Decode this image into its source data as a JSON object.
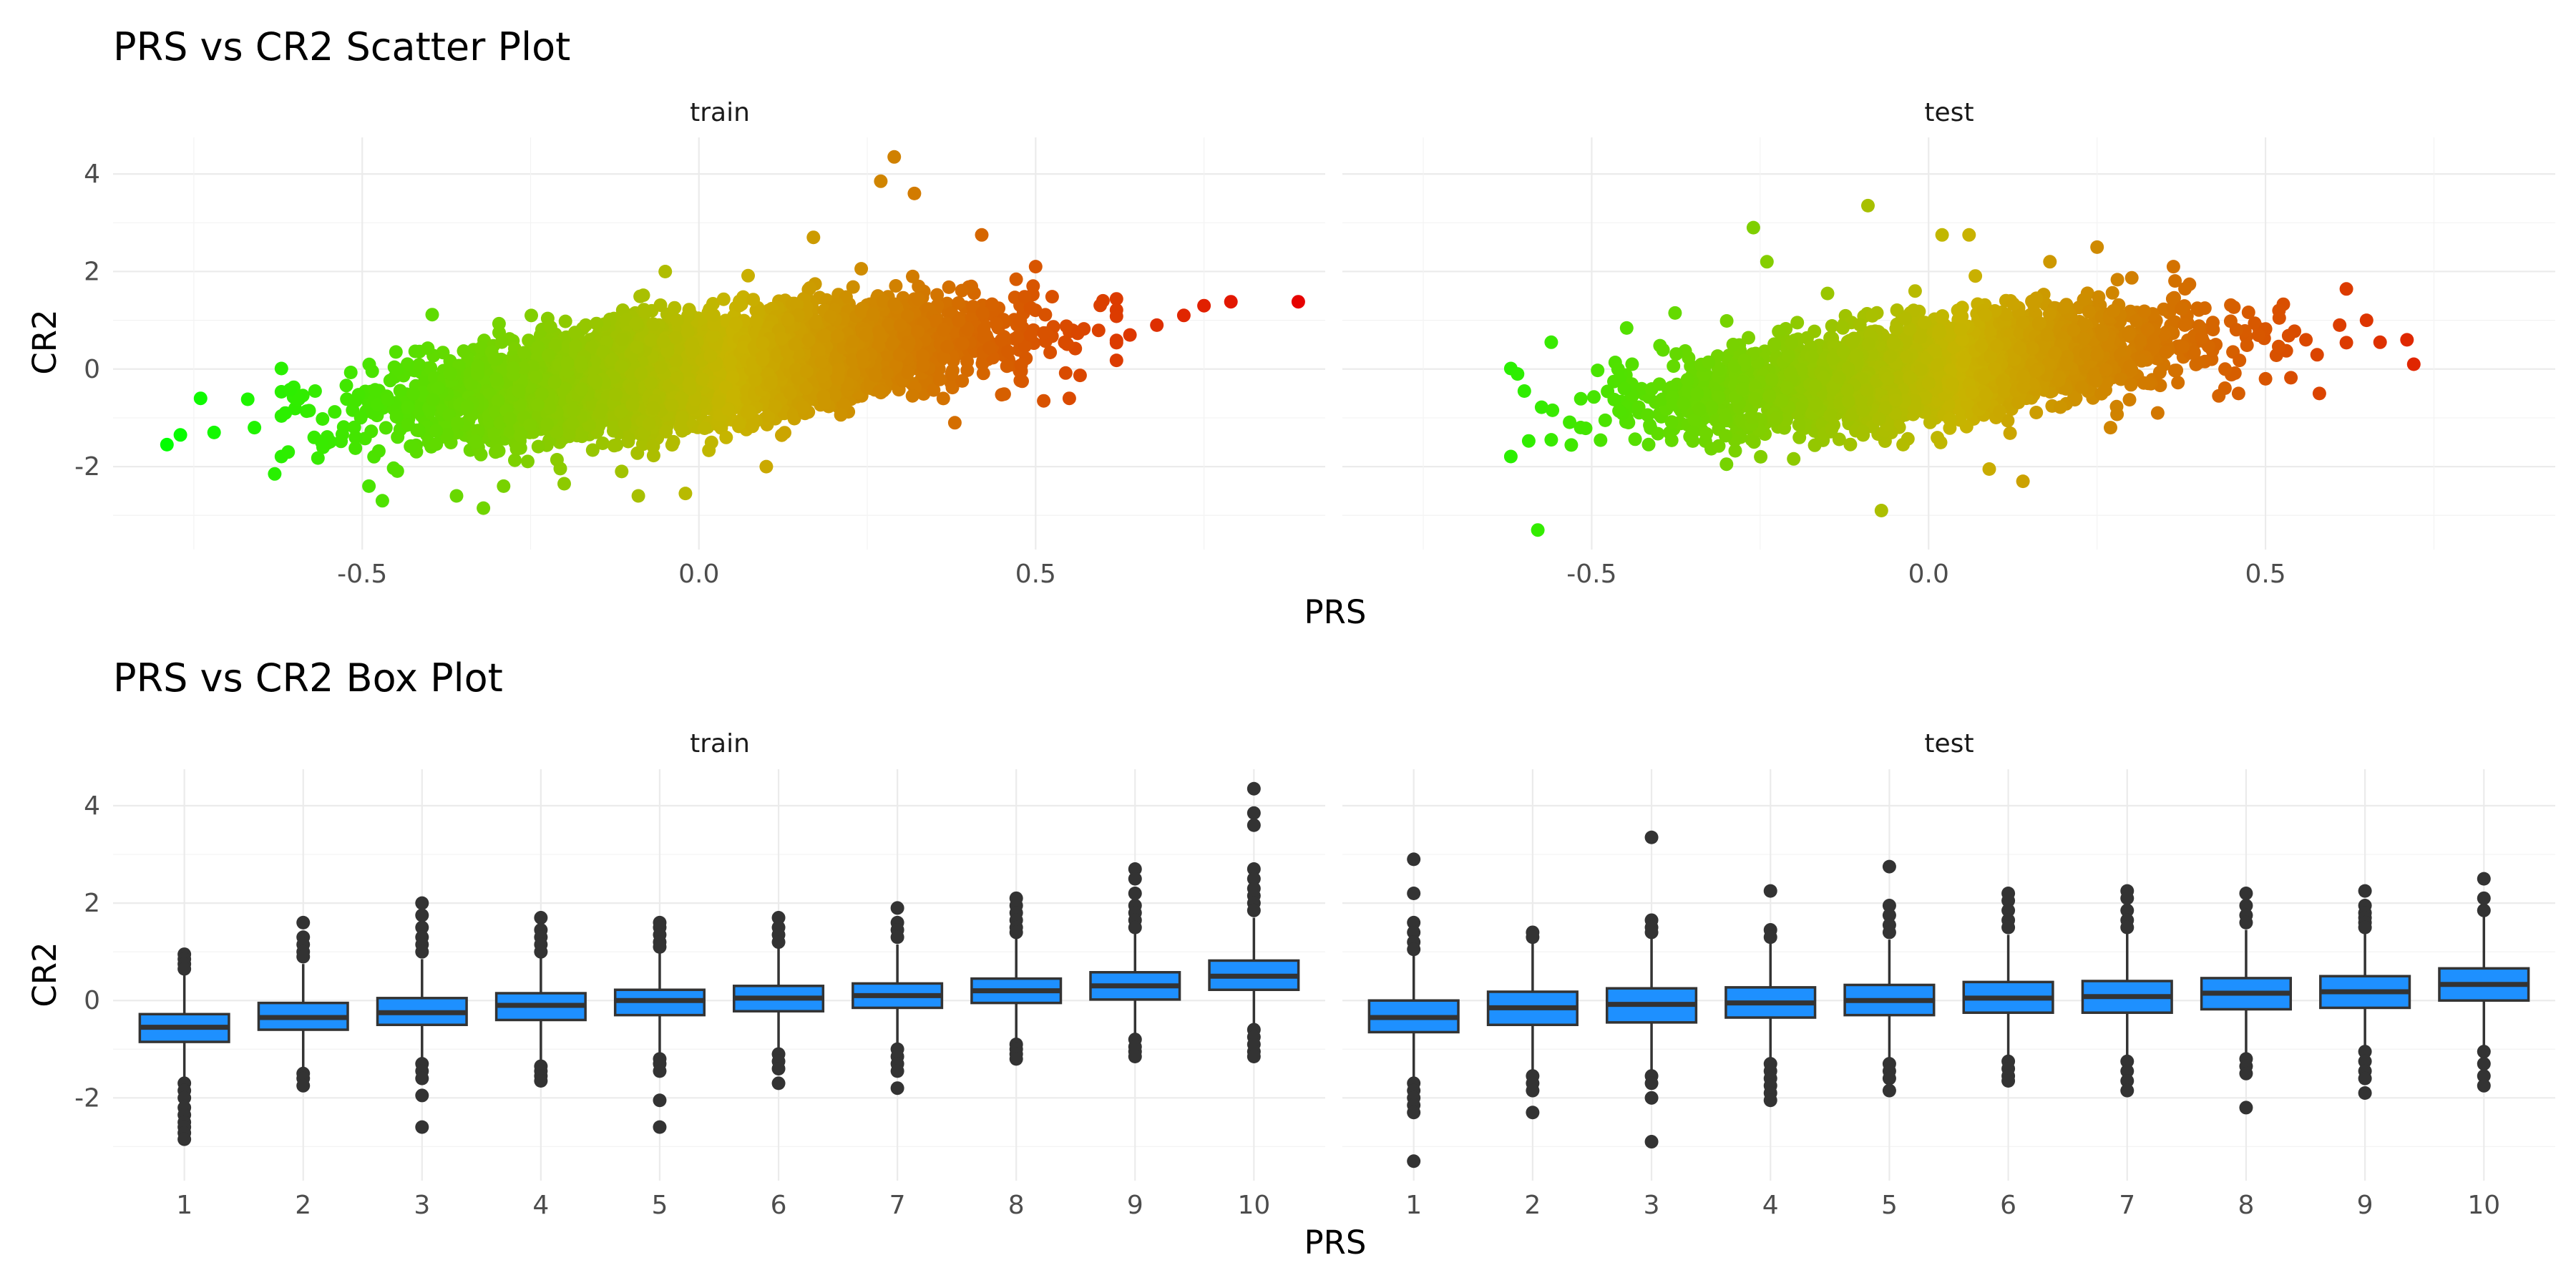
{
  "chart_data": [
    {
      "type": "scatter",
      "title": "PRS vs CR2 Scatter Plot",
      "xlabel": "PRS",
      "ylabel": "CR2",
      "facets": [
        "train",
        "test"
      ],
      "xlim": [
        -0.87,
        0.93
      ],
      "ylim": [
        -3.7,
        4.75
      ],
      "x_ticks": [
        -0.5,
        0.0,
        0.5
      ],
      "x_tick_labels": [
        "-0.5",
        "0.0",
        "0.5"
      ],
      "y_ticks": [
        -2,
        0,
        2,
        4
      ],
      "y_tick_labels": [
        "-2",
        "0",
        "2",
        "4"
      ],
      "color_scale": {
        "low": "#00ff00",
        "mid": "#c8b400",
        "high": "#e60000",
        "low_x": -0.8,
        "high_x": 0.9
      },
      "trend": {
        "intercept": 0.0,
        "slope": 1.6,
        "residual_sd": 0.5
      },
      "series": [
        {
          "name": "train",
          "sample_points": [
            [
              -0.79,
              -1.55
            ],
            [
              -0.77,
              -1.35
            ],
            [
              -0.74,
              -0.6
            ],
            [
              -0.72,
              -1.3
            ],
            [
              -0.67,
              -0.62
            ],
            [
              -0.66,
              -1.2
            ],
            [
              -0.63,
              -2.15
            ],
            [
              -0.61,
              -1.7
            ],
            [
              -0.56,
              -1.5
            ],
            [
              -0.49,
              -2.4
            ],
            [
              -0.47,
              -2.7
            ],
            [
              -0.36,
              -2.6
            ],
            [
              -0.32,
              -2.85
            ],
            [
              -0.29,
              -2.4
            ],
            [
              -0.2,
              -2.35
            ],
            [
              -0.09,
              -2.6
            ],
            [
              -0.02,
              -2.55
            ],
            [
              0.1,
              -2.0
            ],
            [
              0.27,
              3.85
            ],
            [
              0.29,
              4.35
            ],
            [
              0.32,
              3.6
            ],
            [
              0.17,
              2.7
            ],
            [
              0.42,
              2.75
            ],
            [
              0.5,
              2.1
            ],
            [
              0.6,
              1.4
            ],
            [
              0.72,
              1.1
            ],
            [
              0.75,
              1.3
            ],
            [
              0.79,
              1.38
            ],
            [
              0.89,
              1.38
            ],
            [
              -0.05,
              2.0
            ],
            [
              0.38,
              -1.1
            ],
            [
              0.48,
              -0.25
            ],
            [
              0.55,
              -0.6
            ],
            [
              0.64,
              0.7
            ],
            [
              0.68,
              0.9
            ],
            [
              -0.45,
              0.35
            ]
          ]
        },
        {
          "name": "test",
          "sample_points": [
            [
              -0.58,
              -3.3
            ],
            [
              -0.56,
              -1.45
            ],
            [
              -0.56,
              0.55
            ],
            [
              -0.61,
              -0.1
            ],
            [
              -0.6,
              -0.45
            ],
            [
              -0.48,
              -1.05
            ],
            [
              -0.35,
              -1.3
            ],
            [
              -0.3,
              -1.95
            ],
            [
              -0.26,
              2.9
            ],
            [
              -0.24,
              2.2
            ],
            [
              -0.09,
              3.35
            ],
            [
              -0.07,
              -2.9
            ],
            [
              -0.02,
              1.6
            ],
            [
              0.02,
              2.75
            ],
            [
              0.06,
              2.75
            ],
            [
              0.09,
              -2.05
            ],
            [
              0.14,
              -2.3
            ],
            [
              0.25,
              2.5
            ],
            [
              0.27,
              -1.2
            ],
            [
              0.34,
              -0.9
            ],
            [
              0.41,
              1.25
            ],
            [
              0.5,
              -0.2
            ],
            [
              0.52,
              1.2
            ],
            [
              0.56,
              0.6
            ],
            [
              0.61,
              0.9
            ],
            [
              0.65,
              1.0
            ],
            [
              0.67,
              0.55
            ],
            [
              0.71,
              0.6
            ],
            [
              0.72,
              0.1
            ],
            [
              -0.44,
              0.1
            ],
            [
              0.46,
              -0.5
            ],
            [
              0.38,
              0.9
            ],
            [
              -0.15,
              1.55
            ],
            [
              0.18,
              2.2
            ],
            [
              0.44,
              0.0
            ],
            [
              0.58,
              -0.5
            ]
          ]
        }
      ],
      "grid": true,
      "legend": "none"
    },
    {
      "type": "box",
      "title": "PRS vs CR2 Box Plot",
      "xlabel": "PRS",
      "ylabel": "CR2",
      "facets": [
        "train",
        "test"
      ],
      "categories": [
        "1",
        "2",
        "3",
        "4",
        "5",
        "6",
        "7",
        "8",
        "9",
        "10"
      ],
      "ylim": [
        -3.7,
        4.75
      ],
      "y_ticks": [
        -2,
        0,
        2,
        4
      ],
      "y_tick_labels": [
        "-2",
        "0",
        "2",
        "4"
      ],
      "box_color": "#1e90ff",
      "series": [
        {
          "name": "train",
          "boxes": [
            {
              "q1": -0.85,
              "median": -0.55,
              "q3": -0.28,
              "low": -1.6,
              "high": 0.55,
              "outliers": [
                0.95,
                0.85,
                0.75,
                0.65,
                -1.7,
                -1.85,
                -2.0,
                -2.2,
                -2.35,
                -2.5,
                -2.6,
                -2.72,
                -2.85
              ]
            },
            {
              "q1": -0.6,
              "median": -0.35,
              "q3": -0.05,
              "low": -1.4,
              "high": 0.75,
              "outliers": [
                1.6,
                1.3,
                1.15,
                1.0,
                0.9,
                -1.5,
                -1.6,
                -1.75
              ]
            },
            {
              "q1": -0.5,
              "median": -0.25,
              "q3": 0.05,
              "low": -1.2,
              "high": 0.85,
              "outliers": [
                2.0,
                1.75,
                1.5,
                1.3,
                1.15,
                1.0,
                -1.3,
                -1.45,
                -1.6,
                -1.95,
                -2.6
              ]
            },
            {
              "q1": -0.4,
              "median": -0.1,
              "q3": 0.15,
              "low": -1.25,
              "high": 0.9,
              "outliers": [
                1.7,
                1.45,
                1.3,
                1.15,
                1.0,
                -1.35,
                -1.45,
                -1.55,
                -1.65
              ]
            },
            {
              "q1": -0.3,
              "median": 0.0,
              "q3": 0.22,
              "low": -1.1,
              "high": 1.0,
              "outliers": [
                1.6,
                1.5,
                1.35,
                1.2,
                1.1,
                -1.2,
                -1.3,
                -1.45,
                -2.05,
                -2.6
              ]
            },
            {
              "q1": -0.22,
              "median": 0.05,
              "q3": 0.3,
              "low": -1.05,
              "high": 1.1,
              "outliers": [
                1.7,
                1.5,
                1.35,
                1.2,
                -1.1,
                -1.25,
                -1.4,
                -1.7
              ]
            },
            {
              "q1": -0.15,
              "median": 0.1,
              "q3": 0.35,
              "low": -0.95,
              "high": 1.15,
              "outliers": [
                1.9,
                1.6,
                1.45,
                1.3,
                -1.0,
                -1.15,
                -1.3,
                -1.45,
                -1.8
              ]
            },
            {
              "q1": -0.05,
              "median": 0.2,
              "q3": 0.45,
              "low": -0.85,
              "high": 1.3,
              "outliers": [
                2.1,
                1.95,
                1.8,
                1.65,
                1.5,
                1.4,
                -0.9,
                -1.0,
                -1.1,
                -1.2
              ]
            },
            {
              "q1": 0.02,
              "median": 0.3,
              "q3": 0.58,
              "low": -0.75,
              "high": 1.4,
              "outliers": [
                2.7,
                2.5,
                2.2,
                1.95,
                1.8,
                1.65,
                1.5,
                -0.8,
                -0.95,
                -1.05,
                -1.15
              ]
            },
            {
              "q1": 0.22,
              "median": 0.5,
              "q3": 0.82,
              "low": -0.55,
              "high": 1.7,
              "outliers": [
                4.35,
                3.85,
                3.6,
                2.7,
                2.5,
                2.3,
                2.15,
                2.0,
                1.85,
                -0.6,
                -0.75,
                -0.9,
                -1.05,
                -1.15
              ]
            }
          ]
        },
        {
          "name": "test",
          "boxes": [
            {
              "q1": -0.65,
              "median": -0.35,
              "q3": 0.0,
              "low": -1.6,
              "high": 0.95,
              "outliers": [
                2.9,
                2.2,
                1.6,
                1.4,
                1.2,
                1.05,
                -1.7,
                -1.85,
                -2.0,
                -2.15,
                -2.3,
                -3.3
              ]
            },
            {
              "q1": -0.5,
              "median": -0.15,
              "q3": 0.18,
              "low": -1.45,
              "high": 1.2,
              "outliers": [
                1.4,
                1.3,
                -1.55,
                -1.7,
                -1.85,
                -2.3
              ]
            },
            {
              "q1": -0.45,
              "median": -0.08,
              "q3": 0.25,
              "low": -1.45,
              "high": 1.3,
              "outliers": [
                3.35,
                1.65,
                1.5,
                1.4,
                -1.55,
                -1.7,
                -2.0,
                -2.9
              ]
            },
            {
              "q1": -0.35,
              "median": -0.05,
              "q3": 0.27,
              "low": -1.25,
              "high": 1.2,
              "outliers": [
                2.25,
                1.45,
                1.3,
                -1.3,
                -1.45,
                -1.6,
                -1.75,
                -1.9,
                -2.05
              ]
            },
            {
              "q1": -0.3,
              "median": 0.0,
              "q3": 0.32,
              "low": -1.2,
              "high": 1.25,
              "outliers": [
                2.75,
                1.95,
                1.75,
                1.55,
                1.4,
                -1.3,
                -1.45,
                -1.6,
                -1.85
              ]
            },
            {
              "q1": -0.25,
              "median": 0.05,
              "q3": 0.38,
              "low": -1.15,
              "high": 1.35,
              "outliers": [
                2.2,
                2.05,
                1.85,
                1.65,
                1.5,
                -1.25,
                -1.4,
                -1.55,
                -1.65
              ]
            },
            {
              "q1": -0.25,
              "median": 0.08,
              "q3": 0.4,
              "low": -1.15,
              "high": 1.4,
              "outliers": [
                2.25,
                2.1,
                1.85,
                1.65,
                1.5,
                -1.25,
                -1.45,
                -1.65,
                -1.85
              ]
            },
            {
              "q1": -0.18,
              "median": 0.15,
              "q3": 0.46,
              "low": -1.1,
              "high": 1.45,
              "outliers": [
                2.2,
                1.95,
                1.75,
                1.6,
                -1.2,
                -1.35,
                -1.5,
                -2.2
              ]
            },
            {
              "q1": -0.15,
              "median": 0.18,
              "q3": 0.5,
              "low": -0.95,
              "high": 1.45,
              "outliers": [
                2.25,
                1.95,
                1.8,
                1.7,
                1.6,
                1.5,
                -1.05,
                -1.25,
                -1.45,
                -1.6,
                -1.9
              ]
            },
            {
              "q1": 0.0,
              "median": 0.33,
              "q3": 0.66,
              "low": -0.95,
              "high": 1.75,
              "outliers": [
                2.5,
                2.1,
                1.85,
                -1.05,
                -1.3,
                -1.55,
                -1.75
              ]
            }
          ]
        }
      ],
      "grid": true,
      "legend": "none"
    }
  ]
}
